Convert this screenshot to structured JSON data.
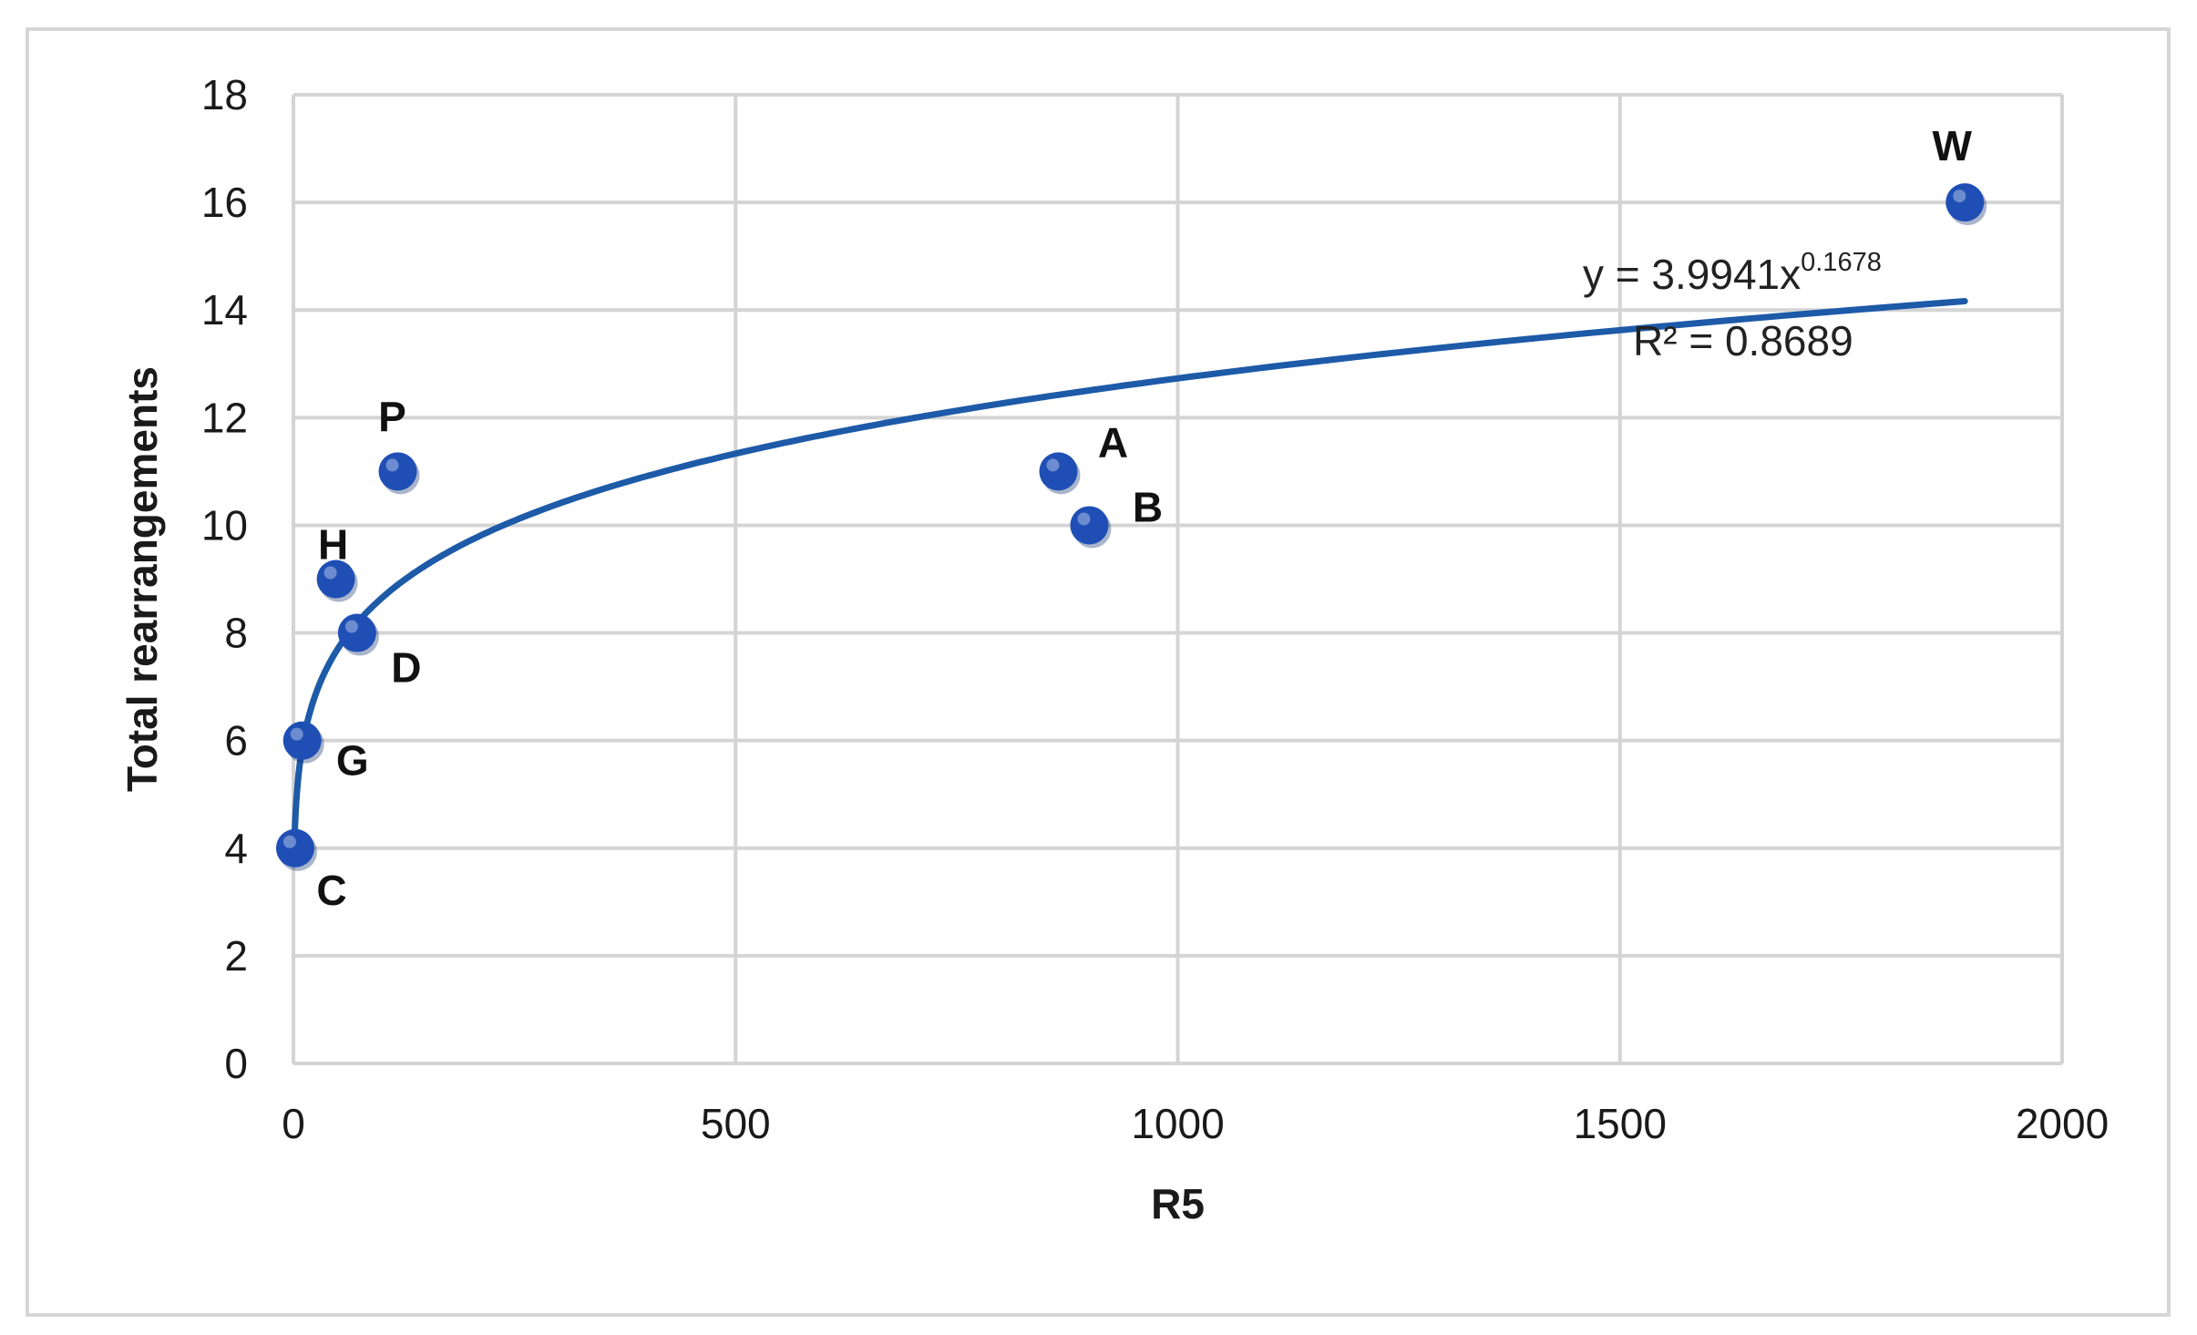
{
  "chart_data": {
    "type": "scatter",
    "xlabel": "R5",
    "ylabel": "Total rearrangements",
    "xlim": [
      0,
      2000
    ],
    "ylim": [
      0,
      18
    ],
    "x_ticks": [
      0,
      500,
      1000,
      1500,
      2000
    ],
    "y_ticks": [
      0,
      2,
      4,
      6,
      8,
      10,
      12,
      14,
      16,
      18
    ],
    "grid": true,
    "legend": "none",
    "marker_color": "#1f4fb5",
    "trend_color": "#1d5aa8",
    "points": [
      {
        "label": "C",
        "x": 2,
        "y": 4
      },
      {
        "label": "G",
        "x": 10,
        "y": 6
      },
      {
        "label": "H",
        "x": 48,
        "y": 9
      },
      {
        "label": "D",
        "x": 72,
        "y": 8
      },
      {
        "label": "P",
        "x": 118,
        "y": 11
      },
      {
        "label": "A",
        "x": 865,
        "y": 11
      },
      {
        "label": "B",
        "x": 900,
        "y": 10
      },
      {
        "label": "W",
        "x": 1890,
        "y": 16
      }
    ],
    "trendline": {
      "type": "power",
      "coefficient": 3.9941,
      "exponent": 0.1678,
      "x_range": [
        1,
        1890
      ],
      "equation_prefix": "y = 3.9941x",
      "equation_exponent": "0.1678",
      "r_squared_text": "R² = 0.8689"
    }
  }
}
